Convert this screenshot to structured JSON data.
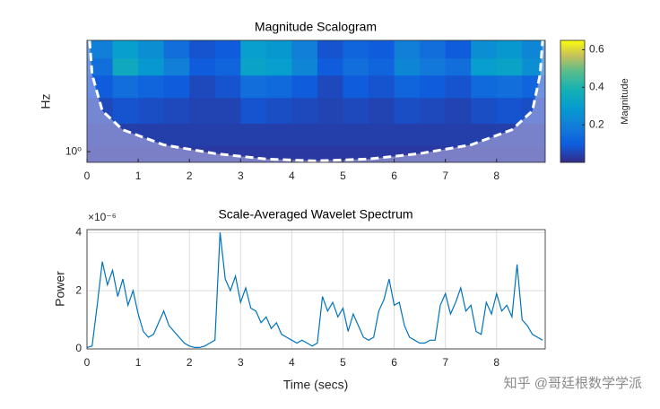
{
  "chart_data": [
    {
      "type": "heatmap",
      "title": "Magnitude Scalogram",
      "y_label": "Hz",
      "colorbar_label": "Magnitude",
      "x": [
        0.25,
        0.75,
        1.25,
        1.75,
        2.25,
        2.75,
        3.25,
        3.75,
        4.25,
        4.75,
        5.25,
        5.75,
        6.25,
        6.75,
        7.25,
        7.75,
        8.25,
        8.75
      ],
      "rows": [
        15,
        10,
        6,
        3,
        1.5,
        0.9
      ],
      "values": [
        [
          0.2,
          0.3,
          0.25,
          0.15,
          0.08,
          0.1,
          0.3,
          0.28,
          0.2,
          0.08,
          0.12,
          0.1,
          0.2,
          0.15,
          0.1,
          0.25,
          0.28,
          0.22
        ],
        [
          0.15,
          0.35,
          0.28,
          0.2,
          0.1,
          0.12,
          0.32,
          0.3,
          0.22,
          0.1,
          0.15,
          0.12,
          0.22,
          0.18,
          0.15,
          0.3,
          0.32,
          0.25
        ],
        [
          0.1,
          0.15,
          0.12,
          0.1,
          0.06,
          0.08,
          0.15,
          0.14,
          0.1,
          0.06,
          0.1,
          0.08,
          0.12,
          0.1,
          0.08,
          0.14,
          0.15,
          0.12
        ],
        [
          0.06,
          0.08,
          0.07,
          0.06,
          0.05,
          0.05,
          0.08,
          0.07,
          0.06,
          0.05,
          0.06,
          0.05,
          0.07,
          0.06,
          0.05,
          0.07,
          0.08,
          0.07
        ],
        [
          0.04,
          0.04,
          0.04,
          0.04,
          0.04,
          0.04,
          0.04,
          0.04,
          0.04,
          0.04,
          0.04,
          0.04,
          0.04,
          0.04,
          0.04,
          0.04,
          0.04,
          0.04
        ],
        [
          0.03,
          0.03,
          0.03,
          0.03,
          0.03,
          0.03,
          0.03,
          0.03,
          0.03,
          0.03,
          0.03,
          0.03,
          0.03,
          0.03,
          0.03,
          0.03,
          0.03,
          0.03
        ]
      ],
      "coi": {
        "x": [
          0.05,
          0.1,
          0.3,
          0.7,
          1.5,
          2.5,
          3.5,
          4.45,
          5.5,
          6.5,
          7.5,
          8.3,
          8.7,
          8.85,
          8.9
        ],
        "y": [
          20,
          8,
          3,
          1.8,
          1.2,
          0.95,
          0.82,
          0.78,
          0.82,
          0.95,
          1.2,
          1.8,
          3,
          8,
          20
        ]
      },
      "xlim": [
        0,
        8.95
      ],
      "xticks": [
        0,
        1,
        2,
        3,
        4,
        5,
        6,
        7,
        8
      ],
      "ylim": [
        0.75,
        20
      ],
      "y_scale": "log",
      "yticks": [
        {
          "value": 1,
          "label": "10⁰"
        }
      ],
      "clim": [
        0,
        0.65
      ],
      "cticks": [
        0.2,
        0.4,
        0.6
      ],
      "colormap": "parula"
    },
    {
      "type": "line",
      "title": "Scale-Averaged Wavelet Spectrum",
      "y_label": "Power",
      "x_label": "Time (secs)",
      "y_exponent": "×10⁻⁶",
      "x": [
        0.0,
        0.1,
        0.2,
        0.3,
        0.4,
        0.5,
        0.6,
        0.7,
        0.8,
        0.9,
        1.0,
        1.1,
        1.2,
        1.3,
        1.4,
        1.5,
        1.6,
        1.7,
        1.8,
        1.9,
        2.0,
        2.1,
        2.2,
        2.3,
        2.4,
        2.5,
        2.6,
        2.7,
        2.8,
        2.9,
        3.0,
        3.1,
        3.2,
        3.3,
        3.4,
        3.5,
        3.6,
        3.7,
        3.8,
        3.9,
        4.0,
        4.1,
        4.2,
        4.3,
        4.4,
        4.5,
        4.6,
        4.7,
        4.8,
        4.9,
        5.0,
        5.1,
        5.2,
        5.3,
        5.4,
        5.5,
        5.6,
        5.7,
        5.8,
        5.9,
        6.0,
        6.1,
        6.2,
        6.3,
        6.4,
        6.5,
        6.6,
        6.7,
        6.8,
        6.9,
        7.0,
        7.1,
        7.2,
        7.3,
        7.4,
        7.5,
        7.6,
        7.7,
        7.8,
        7.9,
        8.0,
        8.1,
        8.2,
        8.3,
        8.4,
        8.5,
        8.6,
        8.7,
        8.8,
        8.9
      ],
      "series": [
        {
          "name": "Power",
          "color": "#0072bd",
          "values": [
            0.05,
            0.1,
            1.5,
            3.0,
            2.2,
            2.7,
            1.8,
            2.4,
            1.5,
            2.0,
            1.2,
            0.6,
            0.4,
            0.5,
            0.9,
            1.3,
            0.8,
            0.6,
            0.4,
            0.2,
            0.1,
            0.05,
            0.05,
            0.1,
            0.2,
            0.3,
            4.0,
            2.4,
            2.0,
            2.5,
            1.6,
            2.1,
            1.4,
            1.3,
            0.9,
            1.1,
            0.7,
            0.9,
            0.5,
            0.4,
            0.3,
            0.2,
            0.3,
            0.2,
            0.1,
            0.2,
            1.8,
            1.3,
            1.6,
            1.1,
            1.4,
            0.6,
            1.2,
            0.8,
            0.4,
            0.3,
            0.4,
            1.3,
            1.7,
            2.4,
            1.5,
            1.6,
            0.8,
            0.4,
            0.3,
            0.2,
            0.2,
            0.3,
            0.3,
            1.5,
            1.9,
            1.2,
            1.6,
            2.1,
            1.3,
            1.5,
            0.6,
            0.5,
            1.6,
            1.2,
            1.9,
            1.3,
            1.5,
            1.1,
            2.9,
            1.0,
            0.8,
            0.5,
            0.4,
            0.3
          ]
        }
      ],
      "xlim": [
        0,
        8.95
      ],
      "xticks": [
        0,
        1,
        2,
        3,
        4,
        5,
        6,
        7,
        8
      ],
      "ylim": [
        0,
        4.1
      ],
      "yticks": [
        0,
        2,
        4
      ],
      "grid": true
    }
  ],
  "watermark": "知乎 @哥廷根数学学派"
}
